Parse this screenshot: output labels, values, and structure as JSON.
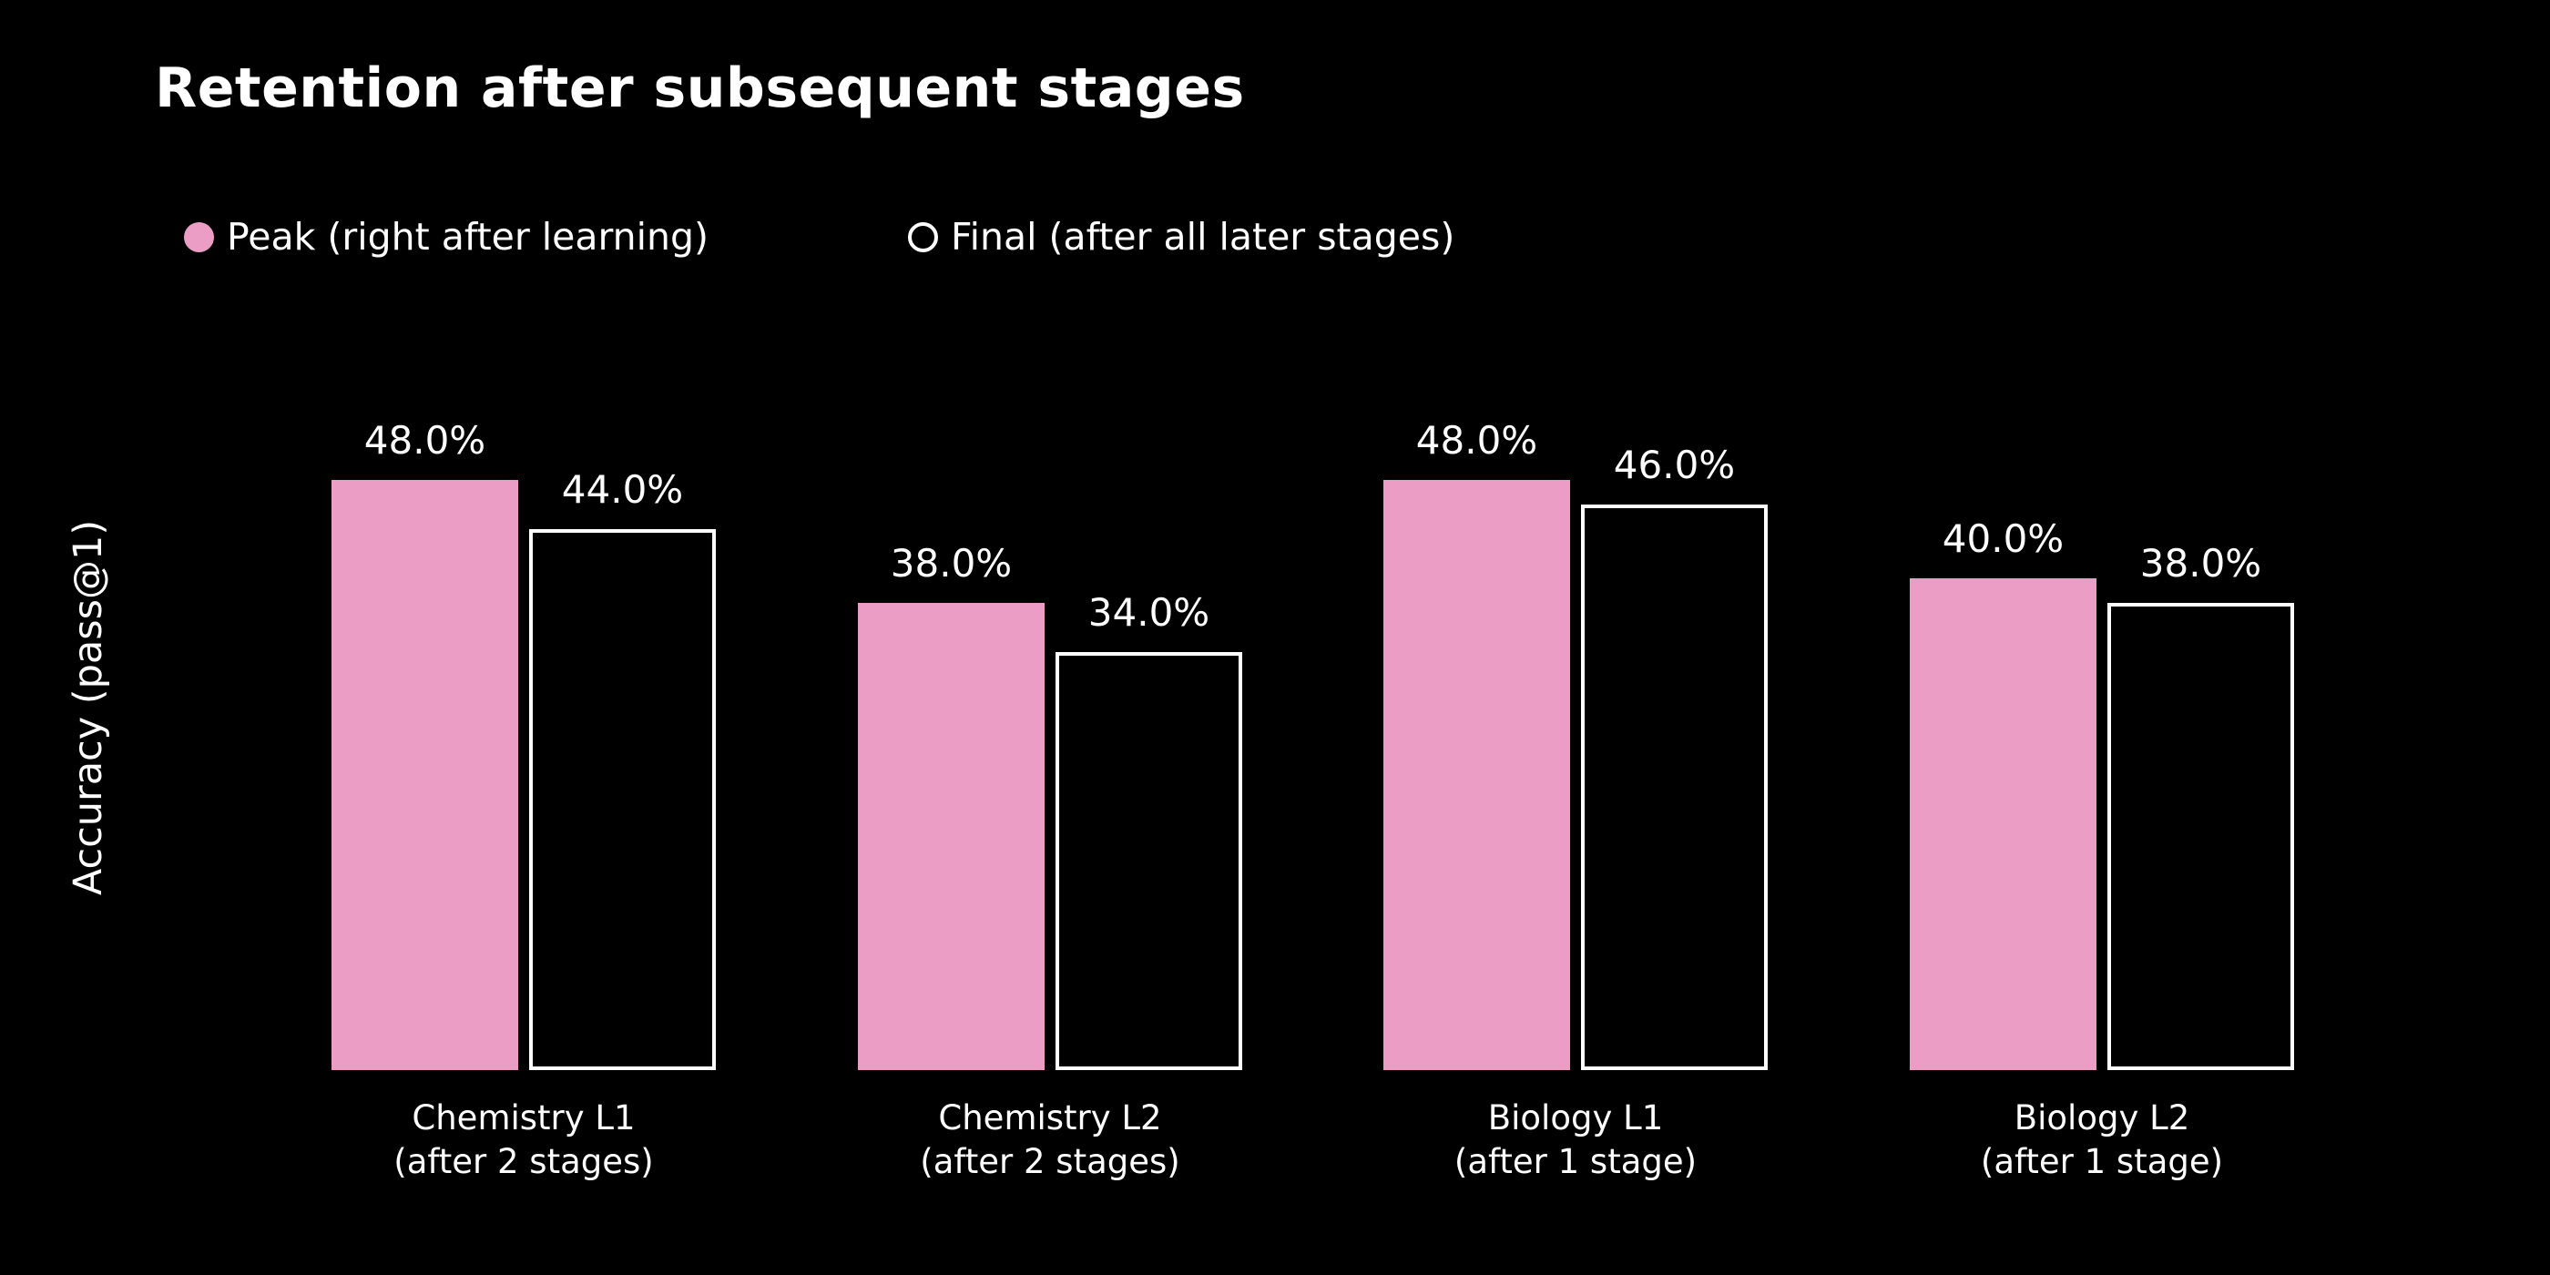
{
  "title": "Retention after subsequent stages",
  "ylabel": "Accuracy (pass@1)",
  "colors": {
    "background": "#000000",
    "text": "#FFFFFF",
    "peak_fill": "#EC9DC6",
    "final_edge": "#FFFFFF"
  },
  "legend": {
    "items": [
      {
        "label": "Peak (right after learning)",
        "marker": "filled-circle"
      },
      {
        "label": "Final (after all later stages)",
        "marker": "hollow-circle"
      }
    ]
  },
  "chart_data": {
    "type": "bar",
    "title": "Retention after subsequent stages",
    "xlabel": "",
    "ylabel": "Accuracy (pass@1)",
    "categories": [
      "Chemistry L1\n(after 2 stages)",
      "Chemistry L2\n(after 2 stages)",
      "Biology L1\n(after 1 stage)",
      "Biology L2\n(after 1 stage)"
    ],
    "series": [
      {
        "name": "Peak (right after learning)",
        "key": "peak",
        "style": "filled",
        "values": [
          48.0,
          38.0,
          48.0,
          40.0
        ],
        "labels": [
          "48.0%",
          "38.0%",
          "48.0%",
          "40.0%"
        ]
      },
      {
        "name": "Final (after all later stages)",
        "key": "final",
        "style": "hollow",
        "values": [
          44.0,
          34.0,
          46.0,
          38.0
        ],
        "labels": [
          "44.0%",
          "34.0%",
          "46.0%",
          "38.0%"
        ]
      }
    ],
    "ylim": [
      0,
      52
    ],
    "grid": false,
    "legend_position": "upper-left",
    "value_label_format": "{:.1f}%"
  }
}
